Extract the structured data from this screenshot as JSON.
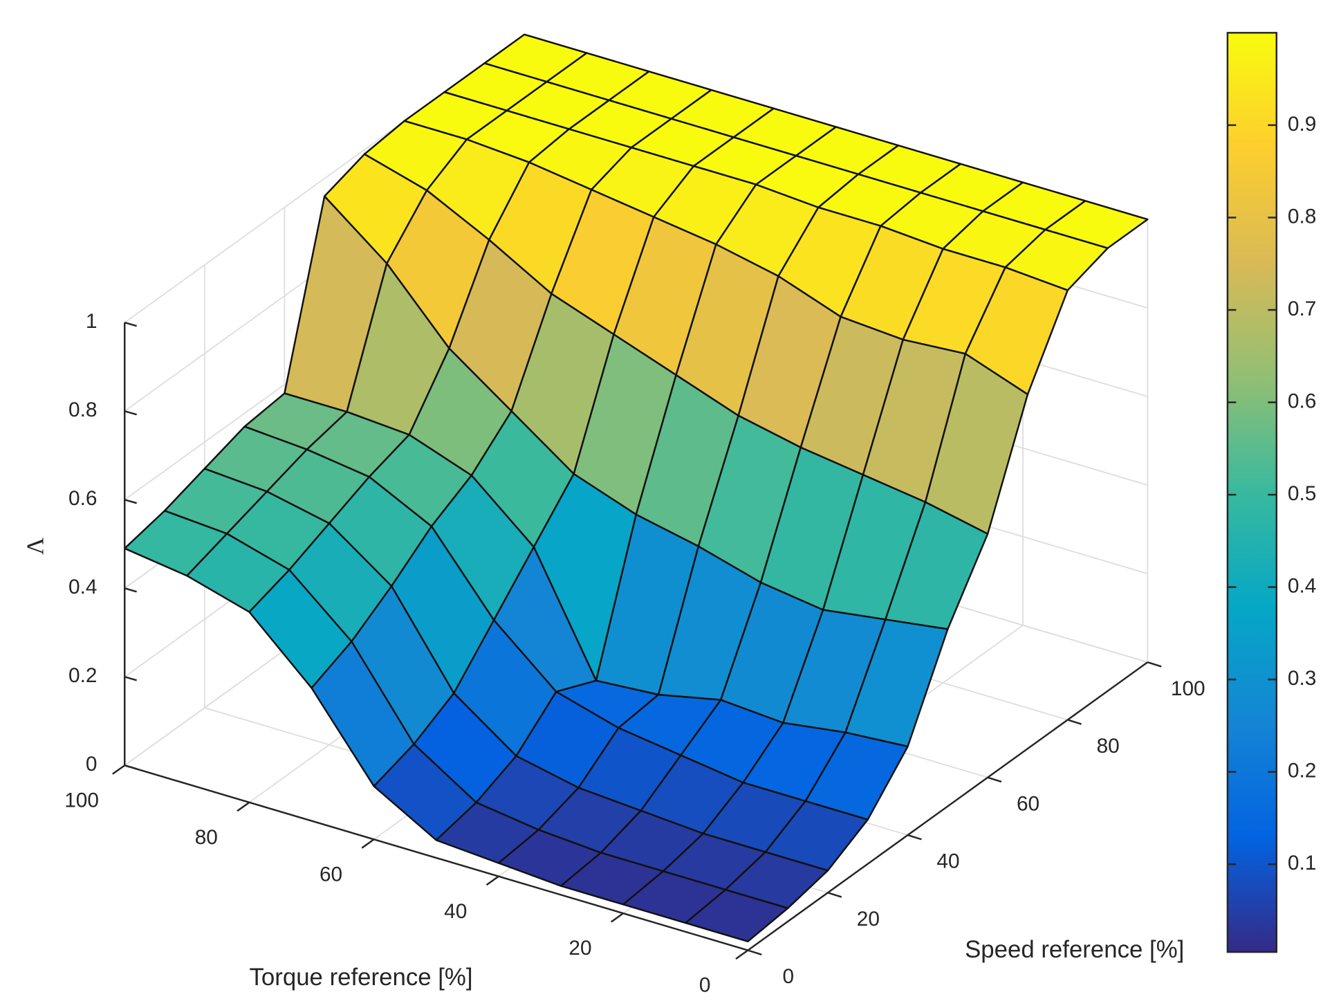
{
  "chart_data": {
    "type": "surface",
    "xlabel": "Torque reference [%]",
    "ylabel": "Speed reference [%]",
    "zlabel": "Λ",
    "x": [
      0,
      10,
      20,
      30,
      40,
      50,
      60,
      70,
      80,
      90,
      100
    ],
    "y": [
      0,
      10,
      20,
      30,
      40,
      50,
      60,
      70,
      80,
      90,
      100
    ],
    "z": [
      [
        0.02,
        0.02,
        0.02,
        0.02,
        0.03,
        0.04,
        0.12,
        0.3,
        0.43,
        0.47,
        0.49
      ],
      [
        0.03,
        0.03,
        0.03,
        0.03,
        0.04,
        0.06,
        0.15,
        0.34,
        0.46,
        0.5,
        0.51
      ],
      [
        0.05,
        0.05,
        0.05,
        0.06,
        0.07,
        0.1,
        0.2,
        0.4,
        0.5,
        0.53,
        0.54
      ],
      [
        0.1,
        0.1,
        0.1,
        0.12,
        0.14,
        0.18,
        0.3,
        0.47,
        0.54,
        0.56,
        0.57
      ],
      [
        0.2,
        0.19,
        0.17,
        0.18,
        0.15,
        0.14,
        0.4,
        0.52,
        0.57,
        0.58,
        0.58
      ],
      [
        0.4,
        0.38,
        0.36,
        0.38,
        0.42,
        0.45,
        0.5,
        0.6,
        0.7,
        0.85,
        0.96
      ],
      [
        0.55,
        0.58,
        0.6,
        0.62,
        0.65,
        0.7,
        0.75,
        0.8,
        0.88,
        0.95,
        0.99
      ],
      [
        0.8,
        0.85,
        0.84,
        0.85,
        0.9,
        0.93,
        0.95,
        0.97,
        0.99,
        1,
        1
      ],
      [
        0.97,
        0.98,
        0.98,
        0.99,
        0.99,
        1,
        1,
        1,
        1,
        1,
        1
      ],
      [
        1,
        1,
        1,
        1,
        1,
        1,
        1,
        1,
        1,
        1,
        1
      ],
      [
        1,
        1,
        1,
        1,
        1,
        1,
        1,
        1,
        1,
        1,
        1
      ]
    ],
    "xlim": [
      0,
      100
    ],
    "ylim": [
      0,
      100
    ],
    "zlim": [
      0,
      1
    ],
    "xticks": [
      0,
      20,
      40,
      60,
      80,
      100
    ],
    "yticks": [
      0,
      20,
      40,
      60,
      80,
      100
    ],
    "zticks": [
      0,
      0.2,
      0.4,
      0.6,
      0.8,
      1
    ],
    "clim": [
      0.005,
      1
    ],
    "colorbar_ticks": [
      0.1,
      0.2,
      0.3,
      0.4,
      0.5,
      0.6,
      0.7,
      0.8,
      0.9
    ],
    "colormap": [
      "#352a87",
      "#0363e1",
      "#1485d4",
      "#06a7c6",
      "#38b99e",
      "#92bf73",
      "#d9ba56",
      "#fcce2e",
      "#f9fb0e"
    ],
    "grid": true
  }
}
